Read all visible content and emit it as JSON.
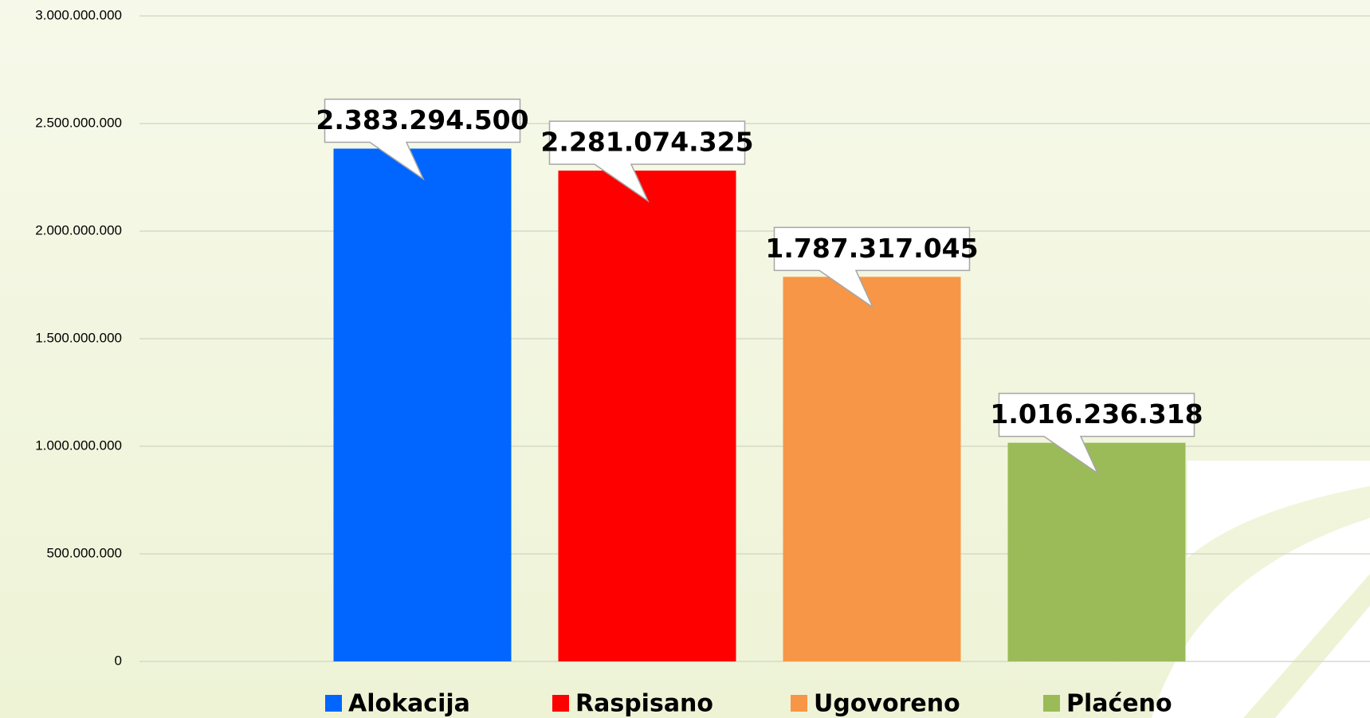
{
  "chart_data": {
    "type": "bar",
    "categories": [
      null
    ],
    "series": [
      {
        "name": "Alokacija",
        "color": "#0066ff",
        "values": [
          2383294500
        ],
        "value_labels": [
          "2.383.294.500"
        ]
      },
      {
        "name": "Raspisano",
        "color": "#ff0000",
        "values": [
          2281074325
        ],
        "value_labels": [
          "2.281.074.325"
        ]
      },
      {
        "name": "Ugovoreno",
        "color": "#f79646",
        "values": [
          1787317045
        ],
        "value_labels": [
          "1.787.317.045"
        ]
      },
      {
        "name": "Plaćeno",
        "color": "#9bbb59",
        "values": [
          1016236318
        ],
        "value_labels": [
          "1.016.236.318"
        ]
      }
    ],
    "ylim": [
      0,
      3000000000
    ],
    "yticks": [
      0,
      {
        "value": 500000000,
        "label": "500.000.000"
      },
      {
        "value": 1000000000,
        "label": "1.000.000.000"
      },
      {
        "value": 1500000000,
        "label": "1.500.000.000"
      },
      {
        "value": 2000000000,
        "label": "2.000.000.000"
      },
      {
        "value": 2500000000,
        "label": "2.500.000.000"
      },
      {
        "value": 3000000000,
        "label": "3.000.000.000"
      }
    ],
    "grid": true,
    "legend": "bottom"
  }
}
